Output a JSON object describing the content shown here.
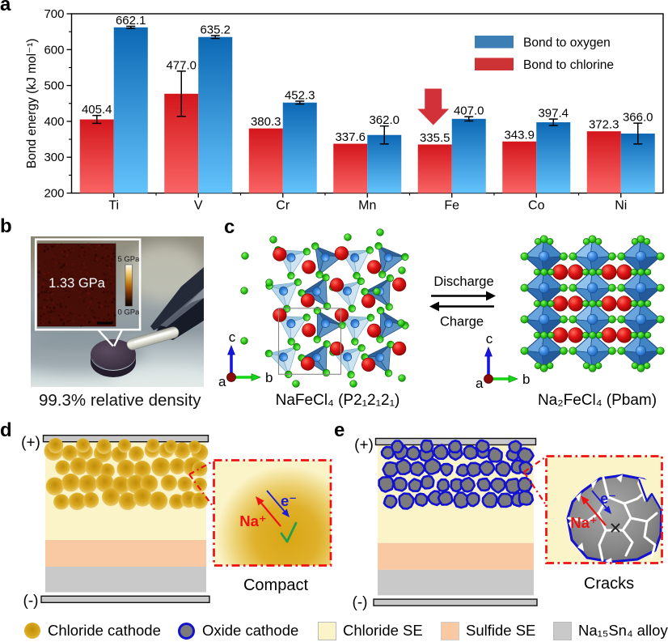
{
  "panels": {
    "a": "a",
    "b": "b",
    "c": "c",
    "d": "d",
    "e": "e"
  },
  "chart_data": {
    "type": "bar",
    "title": "",
    "xlabel": "",
    "ylabel": "Bond energy (kJ mol⁻¹)",
    "categories": [
      "Ti",
      "V",
      "Cr",
      "Mn",
      "Fe",
      "Co",
      "Ni"
    ],
    "series": [
      {
        "name": "Bond to chlorine",
        "values": [
          405.4,
          477.0,
          380.3,
          337.6,
          335.5,
          343.9,
          372.3
        ],
        "errors": [
          11,
          63,
          0,
          0,
          0,
          0,
          0
        ],
        "bar_color_top": "#d3161c",
        "bar_color_bottom": "#fa6464",
        "legend_color": "#cd3234"
      },
      {
        "name": "Bond to oxygen",
        "values": [
          662.1,
          635.2,
          452.3,
          362.0,
          407.0,
          397.4,
          366.0
        ],
        "errors": [
          3,
          4,
          4,
          25,
          6,
          9,
          29
        ],
        "bar_color_top": "#0d68b4",
        "bar_color_bottom": "#63c3fb",
        "legend_color": "#3d7fb5"
      }
    ],
    "ylim": [
      200,
      700
    ],
    "yticks": [
      200,
      300,
      400,
      500,
      600,
      700
    ],
    "legend_order": [
      "Bond to oxygen",
      "Bond to chlorine"
    ],
    "legend_position": "top-right",
    "grid": false,
    "annotation": {
      "type": "down-arrow",
      "category": "Fe",
      "series": "Bond to chlorine",
      "color": "#d2313a"
    }
  },
  "panel_b": {
    "inset_value": "1.33 GPa",
    "scale_top": "5 GPa",
    "scale_bottom": "0 GPa",
    "caption": "99.3% relative density"
  },
  "panel_c": {
    "forward": "Discharge",
    "reverse": "Charge",
    "left_formula": "NaFeCl₄ (P2₁2₁2₁)",
    "right_formula": "Na₂FeCl₄ (Pbam)",
    "axis_up": "c",
    "axis_right": "b",
    "axis_origin": "a"
  },
  "panel_d": {
    "positive": "(+)",
    "negative": "(-)",
    "ion": "Na⁺",
    "electron": "e⁻",
    "verdict": "check",
    "caption": "Compact"
  },
  "panel_e": {
    "positive": "(+)",
    "negative": "(-)",
    "ion": "Na⁺",
    "electron": "e⁻",
    "verdict": "cross",
    "caption": "Cracks"
  },
  "legend_row": {
    "items": [
      {
        "swatch": "chloride-cathode-circle",
        "label": "Chloride cathode"
      },
      {
        "swatch": "oxide-cathode-circle",
        "label": "Oxide cathode"
      },
      {
        "swatch": "chloride-se-square",
        "label": "Chloride SE"
      },
      {
        "swatch": "sulfide-se-square",
        "label": "Sulfide SE"
      },
      {
        "swatch": "alloy-square",
        "label": "Na₁₅Sn₄ alloy"
      }
    ]
  },
  "colors": {
    "chloride_se": "#fbf4c9",
    "sulfide_se": "#f8c9a2",
    "alloy_gray": "#c9c9c9",
    "electrode_gray": "#c8c8c8",
    "gold_core": "#c08c0a",
    "gold_mid": "#d9a81f",
    "gold_edge": "#ecd07b",
    "oxide_fill": "#7b7b7b",
    "oxide_ring": "#1212d0",
    "inset_border_red": "#ee1111",
    "ion_red": "#ee1111",
    "electron_blue": "#1a1ad8",
    "check_green": "#1fa04a",
    "cross_black": "#222222",
    "na_sphere": "#d40f0f",
    "cl_green": "#2fd01c",
    "fe_blue": "#2f7fd4",
    "tetra_light": "#a9cfe6",
    "tetra_dark": "#3b73ab",
    "octa_light": "#7fb7e8",
    "octa_mid": "#4a8cc8",
    "octa_dark": "#2c62a6"
  }
}
